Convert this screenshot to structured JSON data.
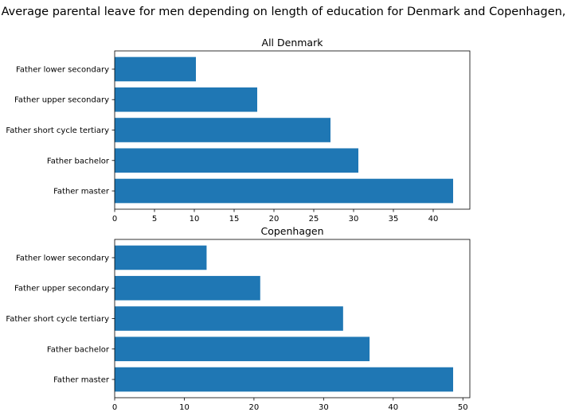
{
  "figure": {
    "title": "Average parental leave for men depending on length of education for Denmark and Copenhagen,"
  },
  "colors": {
    "bar": "#1f77b4"
  },
  "chart_data": [
    {
      "type": "bar",
      "orientation": "horizontal",
      "title": "All Denmark",
      "categories": [
        "Father lower secondary",
        "Father upper secondary",
        "Father short cycle tertiary",
        "Father bachelor",
        "Father master"
      ],
      "values": [
        10.2,
        17.9,
        27.1,
        30.6,
        42.5
      ],
      "xlim": [
        0,
        44.6
      ],
      "xticks": [
        0,
        5,
        10,
        15,
        20,
        25,
        30,
        35,
        40
      ],
      "grid": false
    },
    {
      "type": "bar",
      "orientation": "horizontal",
      "title": "Copenhagen",
      "categories": [
        "Father lower secondary",
        "Father upper secondary",
        "Father short cycle tertiary",
        "Father bachelor",
        "Father master"
      ],
      "values": [
        13.2,
        20.9,
        32.8,
        36.6,
        48.6
      ],
      "xlim": [
        0,
        51.0
      ],
      "xticks": [
        0,
        10,
        20,
        30,
        40,
        50
      ],
      "grid": false
    }
  ]
}
